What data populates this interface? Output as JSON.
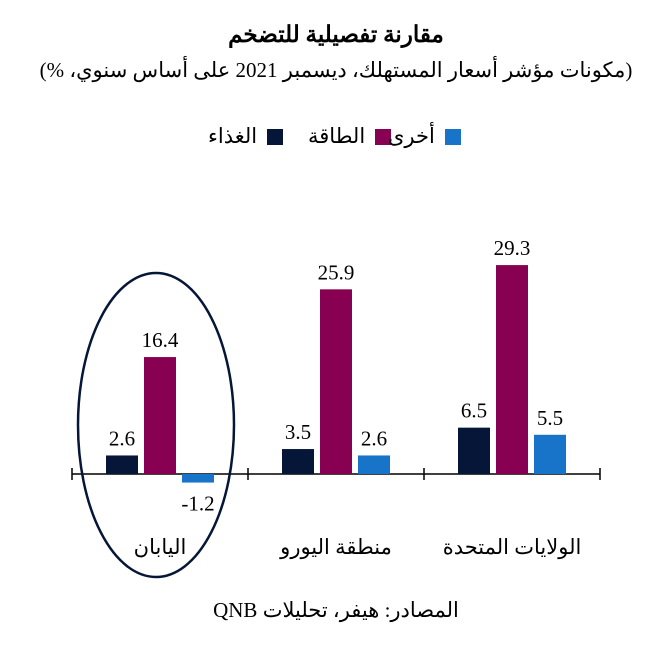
{
  "title": "مقارنة تفصيلية للتضخم",
  "subtitle": "(مكونات مؤشر أسعار المستهلك، ديسمبر 2021 على أساس سنوي، %)",
  "source": "المصادر: هيفر، تحليلات QNB",
  "chart_data": {
    "type": "bar",
    "categories": [
      "اليابان",
      "منطقة اليورو",
      "الولايات المتحدة"
    ],
    "series": [
      {
        "name": "الغذاء",
        "values": [
          2.6,
          3.5,
          6.5
        ],
        "color": "#061638"
      },
      {
        "name": "الطاقة",
        "values": [
          16.4,
          25.9,
          29.3
        ],
        "color": "#870052"
      },
      {
        "name": "أخرى",
        "values": [
          -1.2,
          2.6,
          5.5
        ],
        "color": "#1874c8"
      }
    ],
    "data_labels": [
      [
        "2.6",
        "3.5",
        "6.5"
      ],
      [
        "16.4",
        "25.9",
        "29.3"
      ],
      [
        "-1.2",
        "2.6",
        "5.5"
      ]
    ],
    "highlight": {
      "category": "اليابان",
      "shape": "ellipse",
      "color": "#061638"
    },
    "legend_position": "top-center",
    "grid": false,
    "ylim": [
      -3,
      35
    ]
  }
}
